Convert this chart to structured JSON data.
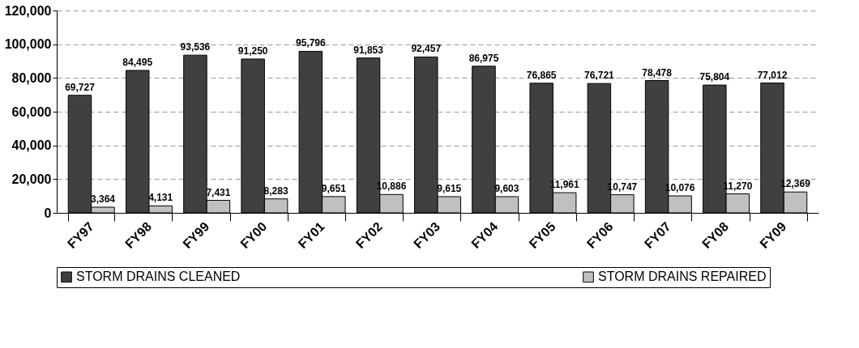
{
  "chart_data": {
    "type": "bar",
    "categories": [
      "FY97",
      "FY98",
      "FY99",
      "FY00",
      "FY01",
      "FY02",
      "FY03",
      "FY04",
      "FY05",
      "FY06",
      "FY07",
      "FY08",
      "FY09"
    ],
    "series": [
      {
        "name": "STORM DRAINS CLEANED",
        "color": "#404040",
        "values": [
          69727,
          84495,
          93536,
          91250,
          95796,
          91853,
          92457,
          86975,
          76865,
          76721,
          78478,
          75804,
          77012
        ],
        "value_labels": [
          "69,727",
          "84,495",
          "93,536",
          "91,250",
          "95,796",
          "91,853",
          "92,457",
          "86,975",
          "76,865",
          "76,721",
          "78,478",
          "75,804",
          "77,012"
        ]
      },
      {
        "name": "STORM DRAINS REPAIRED",
        "color": "#c0c0c0",
        "values": [
          3364,
          4131,
          7431,
          8283,
          9651,
          10886,
          9615,
          9603,
          11961,
          10747,
          10076,
          11270,
          12369
        ],
        "value_labels": [
          "3,364",
          "4,131",
          "7,431",
          "8,283",
          "9,651",
          "10,886",
          "9,615",
          "9,603",
          "11,961",
          "10,747",
          "10,076",
          "11,270",
          "12,369"
        ]
      }
    ],
    "ylim": [
      0,
      120000
    ],
    "yticks": [
      0,
      {
        "value": 20000,
        "label": "20,000"
      },
      {
        "value": 40000,
        "label": "40,000"
      },
      {
        "value": 60000,
        "label": "60,000"
      },
      {
        "value": 80000,
        "label": "80,000"
      },
      {
        "value": 100000,
        "label": "100,000"
      },
      {
        "value": 120000,
        "label": "120,000"
      }
    ],
    "grid": "y",
    "legend": "bottom"
  }
}
